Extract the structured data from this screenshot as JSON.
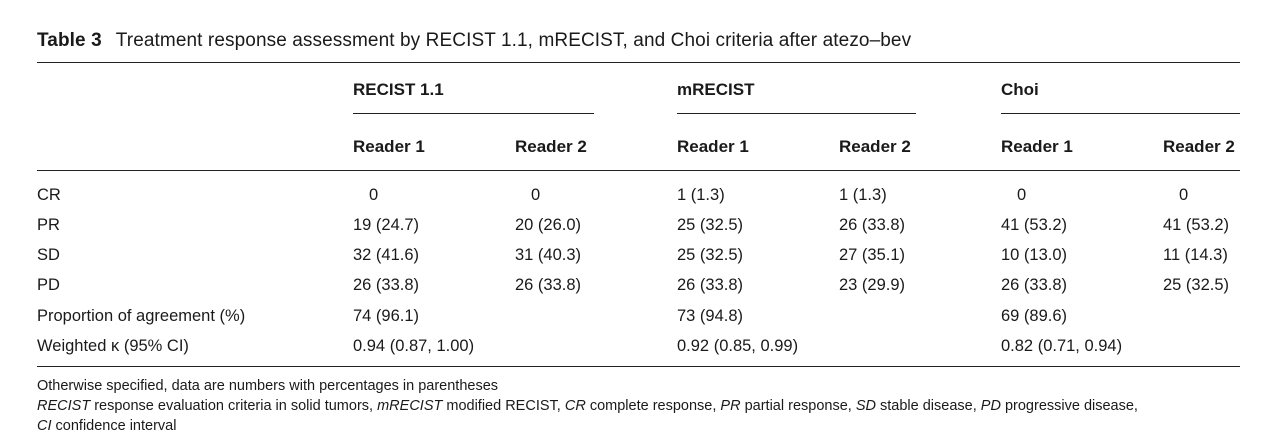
{
  "caption": {
    "label": "Table 3",
    "text": "Treatment response assessment by RECIST 1.1, mRECIST, and Choi criteria after atezo–bev"
  },
  "groups": [
    {
      "name": "RECIST 1.1"
    },
    {
      "name": "mRECIST"
    },
    {
      "name": "Choi"
    }
  ],
  "subheaders": [
    "Reader 1",
    "Reader 2",
    "Reader 1",
    "Reader 2",
    "Reader 1",
    "Reader 2"
  ],
  "rows": [
    {
      "label": "CR",
      "cells": [
        "0",
        "0",
        "1 (1.3)",
        "1 (1.3)",
        "0",
        "0"
      ]
    },
    {
      "label": "PR",
      "cells": [
        "19 (24.7)",
        "20 (26.0)",
        "25 (32.5)",
        "26 (33.8)",
        "41 (53.2)",
        "41 (53.2)"
      ]
    },
    {
      "label": "SD",
      "cells": [
        "32 (41.6)",
        "31 (40.3)",
        "25 (32.5)",
        "27 (35.1)",
        "10 (13.0)",
        "11 (14.3)"
      ]
    },
    {
      "label": "PD",
      "cells": [
        "26 (33.8)",
        "26 (33.8)",
        "26 (33.8)",
        "23 (29.9)",
        "26 (33.8)",
        "25 (32.5)"
      ]
    },
    {
      "label": "Proportion of agreement (%)",
      "cells": [
        "74 (96.1)",
        "",
        "73 (94.8)",
        "",
        "69 (89.6)",
        ""
      ]
    },
    {
      "label": "Weighted κ (95% CI)",
      "cells": [
        "0.94 (0.87, 1.00)",
        "",
        "0.92 (0.85, 0.99)",
        "",
        "0.82 (0.71, 0.94)",
        ""
      ]
    }
  ],
  "footnotes": {
    "line1": "Otherwise specified, data are numbers with percentages in parentheses",
    "abbreviations": [
      {
        "term": "RECIST",
        "def": "response evaluation criteria in solid tumors,"
      },
      {
        "term": "mRECIST",
        "def": "modified RECIST,"
      },
      {
        "term": "CR",
        "def": "complete response,"
      },
      {
        "term": "PR",
        "def": "partial response,"
      },
      {
        "term": "SD",
        "def": "stable disease,"
      },
      {
        "term": "PD",
        "def": "progressive disease,"
      },
      {
        "term": "CI",
        "def": "confidence interval"
      }
    ]
  }
}
